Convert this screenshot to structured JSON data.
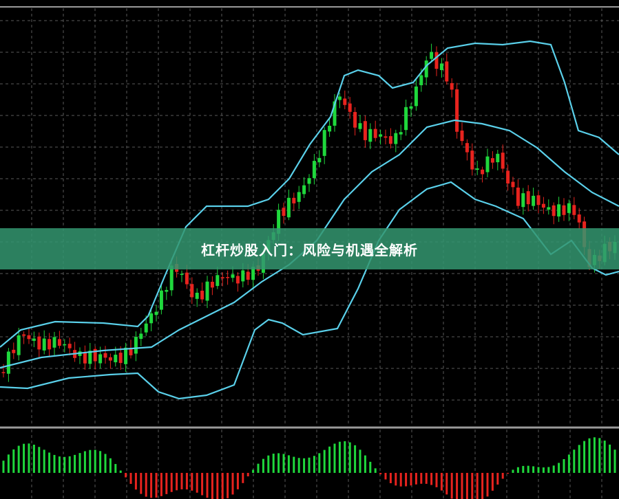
{
  "banner": {
    "title": "杠杆炒股入门：风险与机遇全解析"
  }
}
